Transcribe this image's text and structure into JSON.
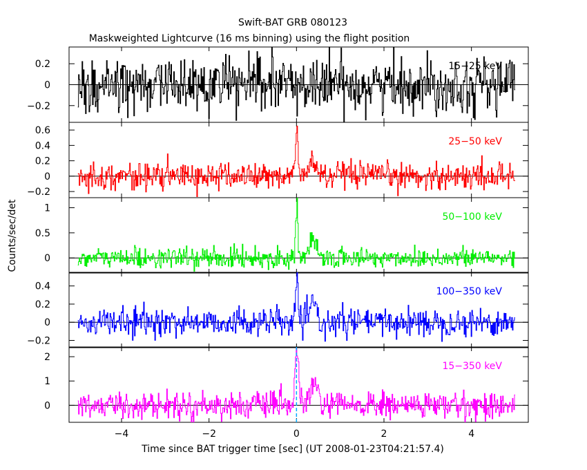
{
  "chart_data": {
    "type": "line",
    "title": "Swift-BAT GRB 080123",
    "subtitle": "Maskweighted Lightcurve (16 ms binning) using the flight position",
    "xlabel": "Time since BAT trigger time [sec] (UT 2008-01-23T04:21:57.4)",
    "ylabel": "Counts/sec/det",
    "xlim": [
      -5.2,
      5.3
    ],
    "x_ticks": [
      -4,
      -2,
      0,
      2,
      4
    ],
    "x_tick_labels": [
      "−4",
      "−2",
      "0",
      "2",
      "4"
    ],
    "x_range": [
      -5.0,
      5.0
    ],
    "bin_width": 0.016,
    "grid": false,
    "panels": [
      {
        "band": "15−25 keV",
        "color": "#000000",
        "ylim": [
          -0.36,
          0.36
        ],
        "y_ticks": [
          -0.2,
          0,
          0.2
        ],
        "y_tick_labels": [
          "−0.2",
          "0",
          "0.2"
        ],
        "noise_sigma": 0.13,
        "pulses": []
      },
      {
        "band": "25−50 keV",
        "color": "#ff0000",
        "ylim": [
          -0.28,
          0.7
        ],
        "y_ticks": [
          -0.2,
          0,
          0.2,
          0.4,
          0.6
        ],
        "y_tick_labels": [
          "−0.2",
          "0",
          "0.2",
          "0.4",
          "0.6"
        ],
        "noise_sigma": 0.085,
        "pulses": [
          {
            "t": 0.01,
            "amp": 0.6,
            "w": 0.03
          },
          {
            "t": 0.38,
            "amp": 0.2,
            "w": 0.08
          }
        ]
      },
      {
        "band": "50−100 keV",
        "color": "#00ee00",
        "ylim": [
          -0.3,
          1.2
        ],
        "y_ticks": [
          0,
          0.5,
          1
        ],
        "y_tick_labels": [
          "0",
          "0.5",
          "1"
        ],
        "noise_sigma": 0.1,
        "pulses": [
          {
            "t": 0.01,
            "amp": 1.15,
            "w": 0.025
          },
          {
            "t": 0.38,
            "amp": 0.35,
            "w": 0.07
          }
        ]
      },
      {
        "band": "100−350 keV",
        "color": "#0000ff",
        "ylim": [
          -0.28,
          0.55
        ],
        "y_ticks": [
          -0.2,
          0,
          0.2,
          0.4
        ],
        "y_tick_labels": [
          "−0.2",
          "0",
          "0.2",
          "0.4"
        ],
        "noise_sigma": 0.075,
        "pulses": [
          {
            "t": 0.01,
            "amp": 0.5,
            "w": 0.025
          },
          {
            "t": 0.38,
            "amp": 0.25,
            "w": 0.06
          }
        ]
      },
      {
        "band": "15−350 keV",
        "color": "#ff00ff",
        "ylim": [
          -0.7,
          2.4
        ],
        "y_ticks": [
          0,
          1,
          2
        ],
        "y_tick_labels": [
          "0",
          "1",
          "2"
        ],
        "noise_sigma": 0.27,
        "pulses": [
          {
            "t": 0.01,
            "amp": 2.3,
            "w": 0.04
          },
          {
            "t": 0.4,
            "amp": 0.9,
            "w": 0.08
          }
        ]
      }
    ],
    "trigger_marker": {
      "t": 0.0,
      "color": "#00aaff",
      "style": "dashed"
    }
  }
}
